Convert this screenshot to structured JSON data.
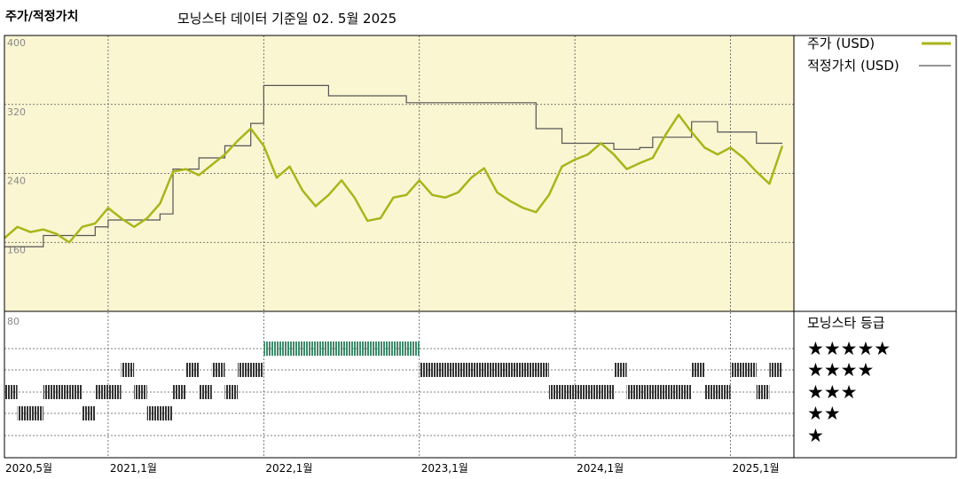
{
  "chart_data": {
    "type": "line",
    "title": "주가/적정가치",
    "subtitle": "모닝스타 데이터 기준일 02. 5월 2025",
    "y_ticks": [
      160,
      240,
      320,
      400
    ],
    "ylim": [
      80,
      400
    ],
    "x_start": "2020-05",
    "x_end": "2025-05",
    "x_tick_labels": [
      {
        "date": "2020-05",
        "label": "2020,5월"
      },
      {
        "date": "2021-01",
        "label": "2021,1월"
      },
      {
        "date": "2022-01",
        "label": "2022,1월"
      },
      {
        "date": "2023-01",
        "label": "2023,1월"
      },
      {
        "date": "2024-01",
        "label": "2024,1월"
      },
      {
        "date": "2025-01",
        "label": "2025,1월"
      }
    ],
    "series": [
      {
        "name": "주가 (USD)",
        "color": "#a9b51a",
        "points": [
          [
            "2020-05",
            165
          ],
          [
            "2020-06",
            178
          ],
          [
            "2020-07",
            172
          ],
          [
            "2020-08",
            175
          ],
          [
            "2020-09",
            170
          ],
          [
            "2020-10",
            160
          ],
          [
            "2020-11",
            178
          ],
          [
            "2020-12",
            182
          ],
          [
            "2021-01",
            200
          ],
          [
            "2021-02",
            188
          ],
          [
            "2021-03",
            178
          ],
          [
            "2021-04",
            188
          ],
          [
            "2021-05",
            205
          ],
          [
            "2021-06",
            242
          ],
          [
            "2021-07",
            245
          ],
          [
            "2021-08",
            238
          ],
          [
            "2021-09",
            250
          ],
          [
            "2021-10",
            262
          ],
          [
            "2021-11",
            278
          ],
          [
            "2021-12",
            292
          ],
          [
            "2022-01",
            272
          ],
          [
            "2022-02",
            235
          ],
          [
            "2022-03",
            248
          ],
          [
            "2022-04",
            220
          ],
          [
            "2022-05",
            202
          ],
          [
            "2022-06",
            215
          ],
          [
            "2022-07",
            232
          ],
          [
            "2022-08",
            212
          ],
          [
            "2022-09",
            185
          ],
          [
            "2022-10",
            188
          ],
          [
            "2022-11",
            212
          ],
          [
            "2022-12",
            215
          ],
          [
            "2023-01",
            232
          ],
          [
            "2023-02",
            215
          ],
          [
            "2023-03",
            212
          ],
          [
            "2023-04",
            218
          ],
          [
            "2023-05",
            235
          ],
          [
            "2023-06",
            246
          ],
          [
            "2023-07",
            218
          ],
          [
            "2023-08",
            208
          ],
          [
            "2023-09",
            200
          ],
          [
            "2023-10",
            195
          ],
          [
            "2023-11",
            215
          ],
          [
            "2023-12",
            248
          ],
          [
            "2024-01",
            256
          ],
          [
            "2024-02",
            262
          ],
          [
            "2024-03",
            275
          ],
          [
            "2024-04",
            262
          ],
          [
            "2024-05",
            245
          ],
          [
            "2024-06",
            252
          ],
          [
            "2024-07",
            258
          ],
          [
            "2024-08",
            285
          ],
          [
            "2024-09",
            308
          ],
          [
            "2024-10",
            288
          ],
          [
            "2024-11",
            270
          ],
          [
            "2024-12",
            262
          ],
          [
            "2025-01",
            270
          ],
          [
            "2025-02",
            258
          ],
          [
            "2025-03",
            242
          ],
          [
            "2025-04",
            228
          ],
          [
            "2025-05",
            272
          ]
        ]
      },
      {
        "name": "적정가치 (USD)",
        "color": "#555555",
        "points": [
          [
            "2020-05",
            155
          ],
          [
            "2020-08",
            168
          ],
          [
            "2020-12",
            178
          ],
          [
            "2021-01",
            186
          ],
          [
            "2021-05",
            193
          ],
          [
            "2021-06",
            245
          ],
          [
            "2021-08",
            258
          ],
          [
            "2021-10",
            272
          ],
          [
            "2021-12",
            298
          ],
          [
            "2022-01",
            342
          ],
          [
            "2022-06",
            330
          ],
          [
            "2022-12",
            322
          ],
          [
            "2023-10",
            292
          ],
          [
            "2023-12",
            275
          ],
          [
            "2024-04",
            268
          ],
          [
            "2024-06",
            270
          ],
          [
            "2024-07",
            282
          ],
          [
            "2024-10",
            300
          ],
          [
            "2024-12",
            288
          ],
          [
            "2025-03",
            275
          ],
          [
            "2025-05",
            275
          ]
        ]
      }
    ],
    "rating": {
      "title": "모닝스타 등급",
      "top_label": "80",
      "labels": [
        "★★★★★",
        "★★★★",
        "★★★",
        "★★",
        "★"
      ],
      "colors": {
        "5": "#3d8a6b",
        "default": "#333333"
      },
      "periods": [
        {
          "from": "2020-05",
          "to": "2020-06",
          "stars": 3
        },
        {
          "from": "2020-06",
          "to": "2020-08",
          "stars": 2
        },
        {
          "from": "2020-08",
          "to": "2020-10",
          "stars": 3
        },
        {
          "from": "2020-10",
          "to": "2020-11",
          "stars": 3
        },
        {
          "from": "2020-11",
          "to": "2020-12",
          "stars": 2
        },
        {
          "from": "2020-12",
          "to": "2021-01",
          "stars": 3
        },
        {
          "from": "2021-01",
          "to": "2021-02",
          "stars": 3
        },
        {
          "from": "2021-02",
          "to": "2021-03",
          "stars": 4
        },
        {
          "from": "2021-03",
          "to": "2021-04",
          "stars": 3
        },
        {
          "from": "2021-04",
          "to": "2021-06",
          "stars": 2
        },
        {
          "from": "2021-06",
          "to": "2021-07",
          "stars": 3
        },
        {
          "from": "2021-07",
          "to": "2021-08",
          "stars": 4
        },
        {
          "from": "2021-08",
          "to": "2021-09",
          "stars": 3
        },
        {
          "from": "2021-09",
          "to": "2021-10",
          "stars": 4
        },
        {
          "from": "2021-10",
          "to": "2021-11",
          "stars": 3
        },
        {
          "from": "2021-11",
          "to": "2022-01",
          "stars": 4
        },
        {
          "from": "2022-01",
          "to": "2023-01",
          "stars": 5
        },
        {
          "from": "2023-01",
          "to": "2023-03",
          "stars": 4
        },
        {
          "from": "2023-03",
          "to": "2023-11",
          "stars": 4
        },
        {
          "from": "2023-11",
          "to": "2024-04",
          "stars": 3
        },
        {
          "from": "2024-04",
          "to": "2024-05",
          "stars": 4
        },
        {
          "from": "2024-05",
          "to": "2024-10",
          "stars": 3
        },
        {
          "from": "2024-10",
          "to": "2024-11",
          "stars": 4
        },
        {
          "from": "2024-11",
          "to": "2025-01",
          "stars": 3
        },
        {
          "from": "2025-01",
          "to": "2025-03",
          "stars": 4
        },
        {
          "from": "2025-03",
          "to": "2025-04",
          "stars": 3
        },
        {
          "from": "2025-04",
          "to": "2025-05",
          "stars": 4
        }
      ]
    },
    "colors": {
      "price_panel_bg": "#faf6d2",
      "grid": "#555555"
    }
  }
}
